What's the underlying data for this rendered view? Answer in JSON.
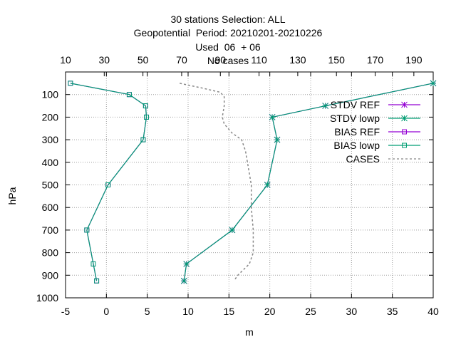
{
  "chart_data": {
    "type": "line",
    "title_lines": [
      "30 stations Selection: ALL",
      "Geopotential  Period: 20210201-20210226",
      "Used  06  + 06",
      "No cases"
    ],
    "xlabel": "m",
    "ylabel": "hPa",
    "xlim": [
      -5,
      40
    ],
    "x2lim": [
      10,
      200
    ],
    "ylim": [
      1000,
      0
    ],
    "y_reversed": true,
    "xticks": [
      -5,
      0,
      5,
      10,
      15,
      20,
      25,
      30,
      35,
      40
    ],
    "x2ticks": [
      10,
      30,
      50,
      70,
      90,
      110,
      130,
      150,
      170,
      190
    ],
    "yticks": [
      100,
      200,
      300,
      400,
      500,
      600,
      700,
      800,
      900,
      1000
    ],
    "grid": true,
    "legend_position": "top-right",
    "series": [
      {
        "name": "STDV REF",
        "color": "#9400d3",
        "marker": "star",
        "axis": "x1",
        "points": [
          [
            40,
            50
          ],
          [
            26.8,
            150
          ],
          [
            20.3,
            200
          ],
          [
            20.9,
            300
          ],
          [
            19.7,
            500
          ],
          [
            15.4,
            700
          ],
          [
            9.8,
            850
          ],
          [
            9.5,
            925
          ]
        ]
      },
      {
        "name": "STDV lowp",
        "color": "#009e73",
        "marker": "star",
        "axis": "x1",
        "points": [
          [
            40,
            50
          ],
          [
            26.8,
            150
          ],
          [
            20.3,
            200
          ],
          [
            20.9,
            300
          ],
          [
            19.7,
            500
          ],
          [
            15.4,
            700
          ],
          [
            9.8,
            850
          ],
          [
            9.5,
            925
          ]
        ]
      },
      {
        "name": "BIAS REF",
        "color": "#9400d3",
        "marker": "square",
        "axis": "x1",
        "points": [
          [
            -4.4,
            50
          ],
          [
            2.8,
            100
          ],
          [
            4.8,
            150
          ],
          [
            4.9,
            200
          ],
          [
            4.5,
            300
          ],
          [
            0.2,
            500
          ],
          [
            -2.4,
            700
          ],
          [
            -1.6,
            850
          ],
          [
            -1.2,
            925
          ]
        ]
      },
      {
        "name": "BIAS lowp",
        "color": "#009e73",
        "marker": "square",
        "axis": "x1",
        "points": [
          [
            -4.4,
            50
          ],
          [
            2.8,
            100
          ],
          [
            4.8,
            150
          ],
          [
            4.9,
            200
          ],
          [
            4.5,
            300
          ],
          [
            0.2,
            500
          ],
          [
            -2.4,
            700
          ],
          [
            -1.6,
            850
          ],
          [
            -1.2,
            925
          ]
        ]
      },
      {
        "name": "CASES",
        "color": "#888888",
        "marker": "none",
        "dash": true,
        "axis": "x2",
        "points": [
          [
            69,
            50
          ],
          [
            80,
            70
          ],
          [
            90,
            90
          ],
          [
            92,
            110
          ],
          [
            92,
            150
          ],
          [
            91,
            200
          ],
          [
            92,
            230
          ],
          [
            96,
            270
          ],
          [
            101,
            300
          ],
          [
            103,
            350
          ],
          [
            104,
            400
          ],
          [
            106,
            500
          ],
          [
            106,
            600
          ],
          [
            107,
            700
          ],
          [
            107,
            800
          ],
          [
            105,
            850
          ],
          [
            99,
            900
          ],
          [
            97,
            925
          ]
        ]
      }
    ]
  }
}
